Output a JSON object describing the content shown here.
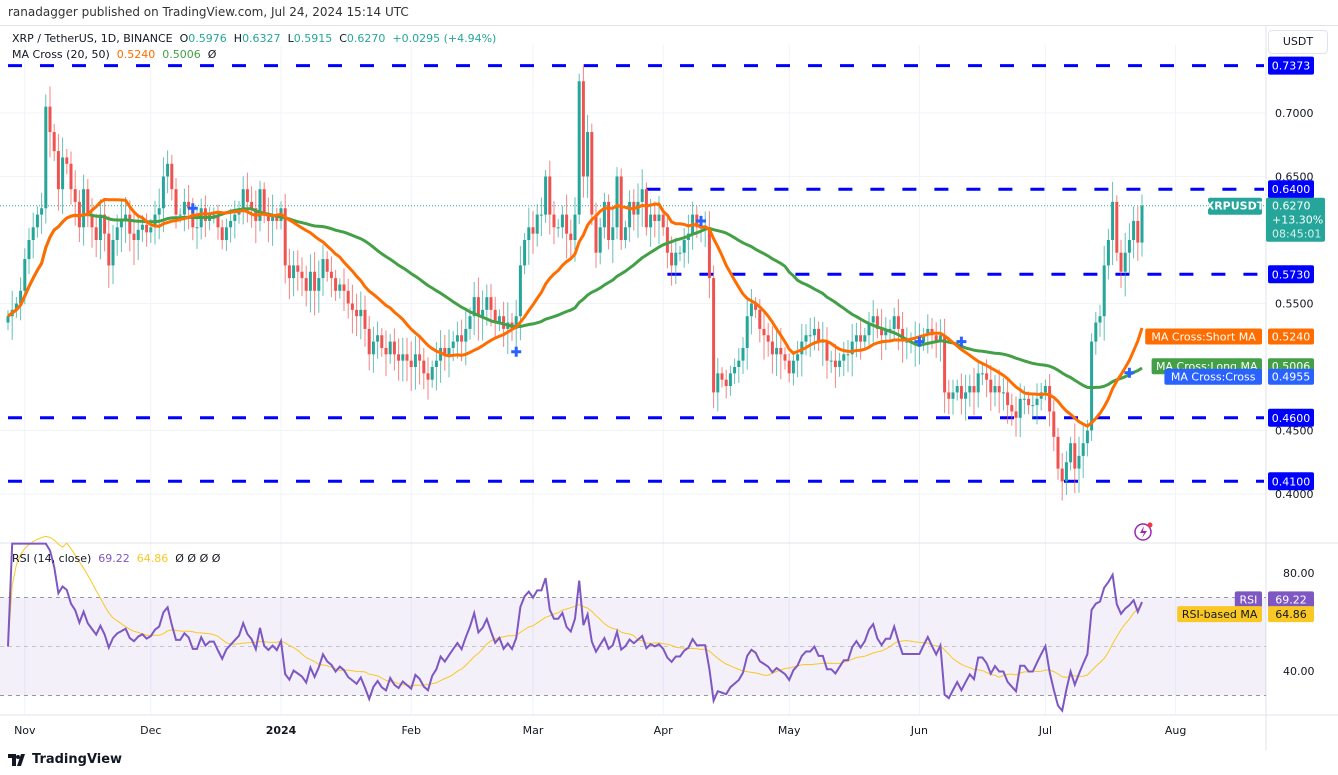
{
  "attribution": "ranadagger published on TradingView.com, Jul 24, 2024 15:14 UTC",
  "legend": {
    "symbol": "XRP / TetherUS, 1D, BINANCE",
    "o_label": "O",
    "open": "0.5976",
    "h_label": "H",
    "high": "0.6327",
    "l_label": "L",
    "low": "0.5915",
    "c_label": "C",
    "close": "0.6270",
    "change": "+0.0295 (+4.94%)",
    "ma_title": "MA Cross (20, 50)",
    "ma_short": "0.5240",
    "ma_long": "0.5006",
    "ma_cross": "Ø"
  },
  "rsi_legend": {
    "title": "RSI (14, close)",
    "rsi": "69.22",
    "rsi_ma": "64.86",
    "extras": "Ø  Ø  Ø  Ø"
  },
  "currency_button": "USDT",
  "footer": {
    "brand": "TradingView"
  },
  "colors": {
    "up": "#26a69a",
    "down": "#ef5350",
    "short_ma": "#ff6d00",
    "long_ma": "#43a047",
    "cross": "#2962ff",
    "levels": "#0000ff",
    "rsi": "#7e57c2",
    "rsi_ma": "#f9c824"
  },
  "chart_data": {
    "type": "candlestick",
    "title": "XRP / TetherUS, 1D, BINANCE",
    "y_range": [
      0.37,
      0.76
    ],
    "price_ticks": [
      "0.7000",
      "0.6500",
      "0.5500",
      "0.4500",
      "0.4000"
    ],
    "time_ticks": [
      {
        "date": "2023-11-01",
        "label": "Nov"
      },
      {
        "date": "2023-12-01",
        "label": "Dec"
      },
      {
        "date": "2024-01-01",
        "label": "2024"
      },
      {
        "date": "2024-02-01",
        "label": "Feb"
      },
      {
        "date": "2024-03-01",
        "label": "Mar"
      },
      {
        "date": "2024-04-01",
        "label": "Apr"
      },
      {
        "date": "2024-05-01",
        "label": "May"
      },
      {
        "date": "2024-06-01",
        "label": "Jun"
      },
      {
        "date": "2024-07-01",
        "label": "Jul"
      },
      {
        "date": "2024-08-01",
        "label": "Aug"
      }
    ],
    "daily_closes": [
      {
        "start": "2023-10-28",
        "closes": [
          0.54,
          0.545,
          0.55,
          0.56
        ]
      },
      {
        "start": "2023-11-01",
        "closes": [
          0.585,
          0.6,
          0.61,
          0.62,
          0.625,
          0.705,
          0.685,
          0.67,
          0.64,
          0.665,
          0.66,
          0.64,
          0.63,
          0.61,
          0.64,
          0.62,
          0.61,
          0.6,
          0.62,
          0.605,
          0.58,
          0.6,
          0.61,
          0.615,
          0.62,
          0.605,
          0.6,
          0.608,
          0.612,
          0.606
        ]
      },
      {
        "start": "2023-12-01",
        "closes": [
          0.61,
          0.62,
          0.625,
          0.65,
          0.66,
          0.64,
          0.62,
          0.62,
          0.63,
          0.625,
          0.61,
          0.61,
          0.625,
          0.615,
          0.62,
          0.62,
          0.61,
          0.6,
          0.61,
          0.615,
          0.62,
          0.625,
          0.64,
          0.63,
          0.625,
          0.615,
          0.64,
          0.62,
          0.615,
          0.62,
          0.615
        ]
      },
      {
        "start": "2024-01-01",
        "closes": [
          0.625,
          0.58,
          0.57,
          0.58,
          0.575,
          0.57,
          0.56,
          0.575,
          0.56,
          0.57,
          0.585,
          0.575,
          0.57,
          0.56,
          0.565,
          0.56,
          0.55,
          0.545,
          0.54,
          0.545,
          0.53,
          0.51,
          0.52,
          0.525,
          0.515,
          0.51,
          0.52,
          0.51,
          0.505,
          0.51,
          0.505
        ]
      },
      {
        "start": "2024-02-01",
        "closes": [
          0.5,
          0.51,
          0.505,
          0.495,
          0.49,
          0.5,
          0.505,
          0.515,
          0.51,
          0.515,
          0.52,
          0.525,
          0.52,
          0.53,
          0.54,
          0.555,
          0.54,
          0.545,
          0.555,
          0.545,
          0.535,
          0.54,
          0.53,
          0.535,
          0.53,
          0.54,
          0.58,
          0.6,
          0.61
        ]
      },
      {
        "start": "2024-03-01",
        "closes": [
          0.605,
          0.62,
          0.62,
          0.65,
          0.62,
          0.61,
          0.61,
          0.62,
          0.605,
          0.6,
          0.62,
          0.725,
          0.65,
          0.685,
          0.62,
          0.59,
          0.61,
          0.63,
          0.6,
          0.61,
          0.65,
          0.6,
          0.61,
          0.63,
          0.62,
          0.63,
          0.64,
          0.61,
          0.62,
          0.615,
          0.62
        ]
      },
      {
        "start": "2024-04-01",
        "closes": [
          0.61,
          0.59,
          0.58,
          0.59,
          0.59,
          0.6,
          0.605,
          0.62,
          0.61,
          0.61,
          0.61,
          0.57,
          0.48,
          0.495,
          0.49,
          0.485,
          0.495,
          0.5,
          0.505,
          0.515,
          0.54,
          0.55,
          0.545,
          0.53,
          0.525,
          0.52,
          0.51,
          0.515,
          0.51,
          0.505
        ]
      },
      {
        "start": "2024-05-01",
        "closes": [
          0.495,
          0.505,
          0.51,
          0.52,
          0.525,
          0.525,
          0.53,
          0.52,
          0.52,
          0.505,
          0.505,
          0.5,
          0.505,
          0.51,
          0.51,
          0.52,
          0.525,
          0.52,
          0.525,
          0.535,
          0.54,
          0.53,
          0.525,
          0.53,
          0.53,
          0.54,
          0.53,
          0.52,
          0.52,
          0.52,
          0.52
        ]
      },
      {
        "start": "2024-06-01",
        "closes": [
          0.52,
          0.525,
          0.53,
          0.525,
          0.52,
          0.525,
          0.48,
          0.475,
          0.48,
          0.485,
          0.475,
          0.48,
          0.485,
          0.48,
          0.495,
          0.495,
          0.49,
          0.48,
          0.485,
          0.48,
          0.48,
          0.47,
          0.465,
          0.46,
          0.475,
          0.475,
          0.47,
          0.47,
          0.475,
          0.48
        ]
      },
      {
        "start": "2024-07-01",
        "closes": [
          0.485,
          0.465,
          0.445,
          0.42,
          0.41,
          0.425,
          0.44,
          0.42,
          0.43,
          0.44,
          0.45,
          0.52,
          0.535,
          0.54,
          0.58,
          0.6,
          0.63,
          0.59,
          0.575,
          0.59,
          0.6,
          0.615,
          0.598,
          0.627
        ]
      }
    ],
    "levels": [
      {
        "value": 0.7373,
        "label": "0.7373",
        "from": "2023-10-28"
      },
      {
        "value": 0.64,
        "label": "0.6400",
        "from": "2024-03-28"
      },
      {
        "value": 0.573,
        "label": "0.5730",
        "from": "2024-04-02"
      },
      {
        "value": 0.46,
        "label": "0.4600",
        "from": "2023-10-28"
      },
      {
        "value": 0.41,
        "label": "0.4100",
        "from": "2023-10-28"
      }
    ],
    "ma_periods": {
      "short": 20,
      "long": 50
    },
    "crosses": [
      {
        "date": "2023-12-11",
        "value": 0.625
      },
      {
        "date": "2024-02-26",
        "value": 0.512
      },
      {
        "date": "2024-04-10",
        "value": 0.615
      },
      {
        "date": "2024-06-01",
        "value": 0.52
      },
      {
        "date": "2024-06-11",
        "value": 0.52
      },
      {
        "date": "2024-07-21",
        "value": 0.4955
      }
    ],
    "last_price": {
      "symbol": "XRPUSDT",
      "price": "0.6270",
      "change": "+13.30%",
      "countdown": "08:45:01",
      "value": 0.627
    },
    "ma_labels": [
      {
        "name": "MA Cross:Short MA",
        "value": "0.5240",
        "color": "#ff6d00"
      },
      {
        "name": "MA Cross:Long MA",
        "value": "0.5006",
        "color": "#43a047"
      },
      {
        "name": "MA Cross:Cross",
        "value": "0.4955",
        "color": "#2962ff"
      }
    ],
    "rsi": {
      "period": 14,
      "ma_period": 14,
      "y_range": [
        20,
        95
      ],
      "bands": [
        70,
        50,
        30
      ],
      "ticks": [
        "80.00",
        "40.00"
      ],
      "labels": [
        {
          "name": "RSI",
          "value": "69.22"
        },
        {
          "name": "RSI-based MA",
          "value": "64.86"
        }
      ]
    }
  }
}
